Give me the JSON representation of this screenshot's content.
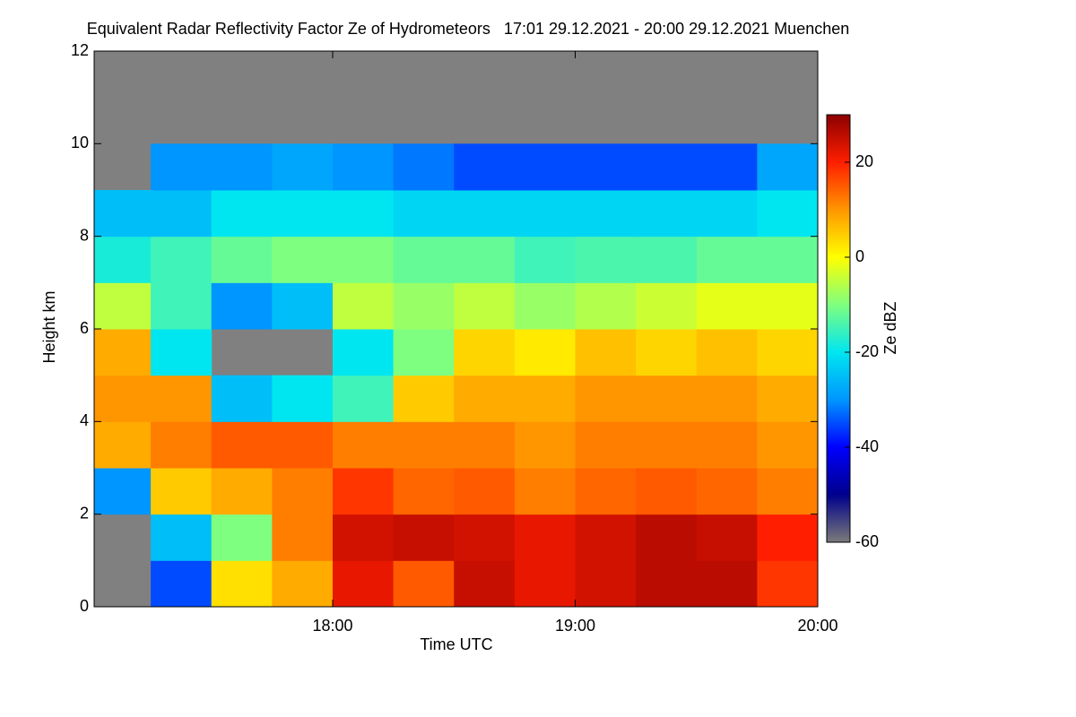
{
  "chart_data": {
    "type": "heatmap",
    "title": "Equivalent Radar Reflectivity Factor Ze of Hydrometeors   17:01 29.12.2021 - 20:00 29.12.2021 Muenchen",
    "x_label": "Time UTC",
    "y_label": "Height km",
    "colorbar_label": "Ze dBZ",
    "xbins": [
      17.0167,
      17.25,
      17.5,
      17.75,
      18.0,
      18.25,
      18.5,
      18.75,
      19.0,
      19.25,
      19.5,
      19.75,
      20.0
    ],
    "ybins": [
      0,
      1,
      2,
      3,
      4,
      5,
      6,
      7,
      8,
      9,
      10,
      11,
      12
    ],
    "z": [
      [
        null,
        -35,
        3,
        8,
        22,
        15,
        25,
        22,
        24,
        26,
        26,
        18
      ],
      [
        null,
        -25,
        -10,
        12,
        24,
        25,
        24,
        22,
        24,
        26,
        25,
        20
      ],
      [
        -30,
        5,
        8,
        12,
        18,
        14,
        15,
        12,
        14,
        15,
        14,
        12
      ],
      [
        8,
        12,
        15,
        15,
        12,
        12,
        12,
        10,
        12,
        12,
        12,
        10
      ],
      [
        10,
        10,
        -25,
        -20,
        -15,
        5,
        8,
        8,
        10,
        10,
        10,
        8
      ],
      [
        8,
        -20,
        null,
        null,
        -20,
        -10,
        4,
        2,
        6,
        4,
        6,
        4
      ],
      [
        -5,
        -15,
        -30,
        -25,
        -5,
        -8,
        -5,
        -8,
        -6,
        -4,
        -2,
        -2
      ],
      [
        -18,
        -15,
        -12,
        -10,
        -10,
        -12,
        -12,
        -15,
        -14,
        -14,
        -12,
        -12
      ],
      [
        -25,
        -25,
        -20,
        -20,
        -20,
        -22,
        -22,
        -22,
        -22,
        -22,
        -22,
        -20
      ],
      [
        null,
        -30,
        -30,
        -28,
        -30,
        -32,
        -35,
        -35,
        -35,
        -35,
        -35,
        -28
      ],
      [
        null,
        null,
        null,
        null,
        null,
        null,
        null,
        null,
        null,
        null,
        null,
        null
      ],
      [
        null,
        null,
        null,
        null,
        null,
        null,
        null,
        null,
        null,
        null,
        null,
        null
      ]
    ],
    "xlim": [
      17.0167,
      20.0
    ],
    "xticks": [
      {
        "value": 18,
        "label": "18:00"
      },
      {
        "value": 19,
        "label": "19:00"
      },
      {
        "value": 20,
        "label": "20:00"
      }
    ],
    "ylim": [
      0,
      12
    ],
    "yticks": [
      0,
      2,
      4,
      6,
      8,
      10,
      12
    ],
    "clim": [
      -60,
      30
    ],
    "cticks": [
      -60,
      -40,
      -20,
      0,
      20
    ],
    "colormap": [
      "#7a7a7a",
      "#00008c",
      "#0000ff",
      "#0096ff",
      "#00e6f0",
      "#7fff7f",
      "#ffff00",
      "#ff9600",
      "#ff1e00",
      "#8c0000"
    ],
    "nodata_color": "#808080"
  }
}
